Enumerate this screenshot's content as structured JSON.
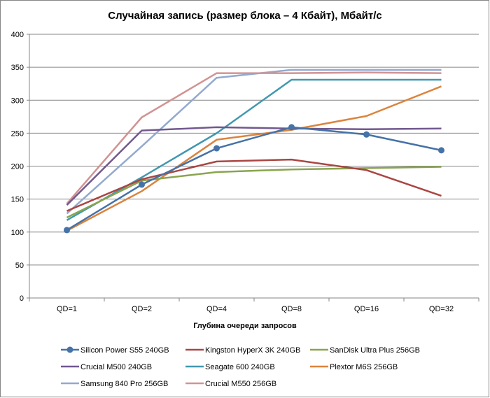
{
  "chart_data": {
    "type": "line",
    "title": "Случайная запись (размер блока – 4 Кбайт), Мбайт/с",
    "xlabel": "Глубина очереди запросов",
    "ylabel": "",
    "ylim": [
      0,
      400
    ],
    "yticks": [
      0,
      50,
      100,
      150,
      200,
      250,
      300,
      350,
      400
    ],
    "grid": true,
    "legend": "bottom",
    "categories": [
      "QD=1",
      "QD=2",
      "QD=4",
      "QD=8",
      "QD=16",
      "QD=32"
    ],
    "series": [
      {
        "name": "Silicon Power S55 240GB",
        "color": "#4572a7",
        "markers": true,
        "values": [
          103,
          172,
          227,
          259,
          248,
          224
        ]
      },
      {
        "name": "Kingston HyperX 3K 240GB",
        "color": "#aa4643",
        "markers": false,
        "values": [
          132,
          180,
          207,
          210,
          194,
          155
        ]
      },
      {
        "name": "SanDisk Ultra Plus 256GB",
        "color": "#89a54e",
        "markers": false,
        "values": [
          122,
          178,
          191,
          195,
          197,
          199
        ]
      },
      {
        "name": "Crucial M500 240GB",
        "color": "#71588f",
        "markers": false,
        "values": [
          141,
          254,
          259,
          257,
          256,
          257
        ]
      },
      {
        "name": "Seagate 600 240GB",
        "color": "#4198af",
        "markers": false,
        "values": [
          118,
          183,
          250,
          331,
          331,
          331
        ]
      },
      {
        "name": "Plextor M6S 256GB",
        "color": "#db843d",
        "markers": false,
        "values": [
          102,
          162,
          240,
          255,
          276,
          321
        ]
      },
      {
        "name": "Samsung 840 Pro 256GB",
        "color": "#93a9cf",
        "markers": false,
        "values": [
          128,
          230,
          334,
          346,
          346,
          346
        ]
      },
      {
        "name": "Crucial M550 256GB",
        "color": "#d19392",
        "markers": false,
        "values": [
          143,
          274,
          341,
          341,
          342,
          341
        ]
      }
    ]
  }
}
